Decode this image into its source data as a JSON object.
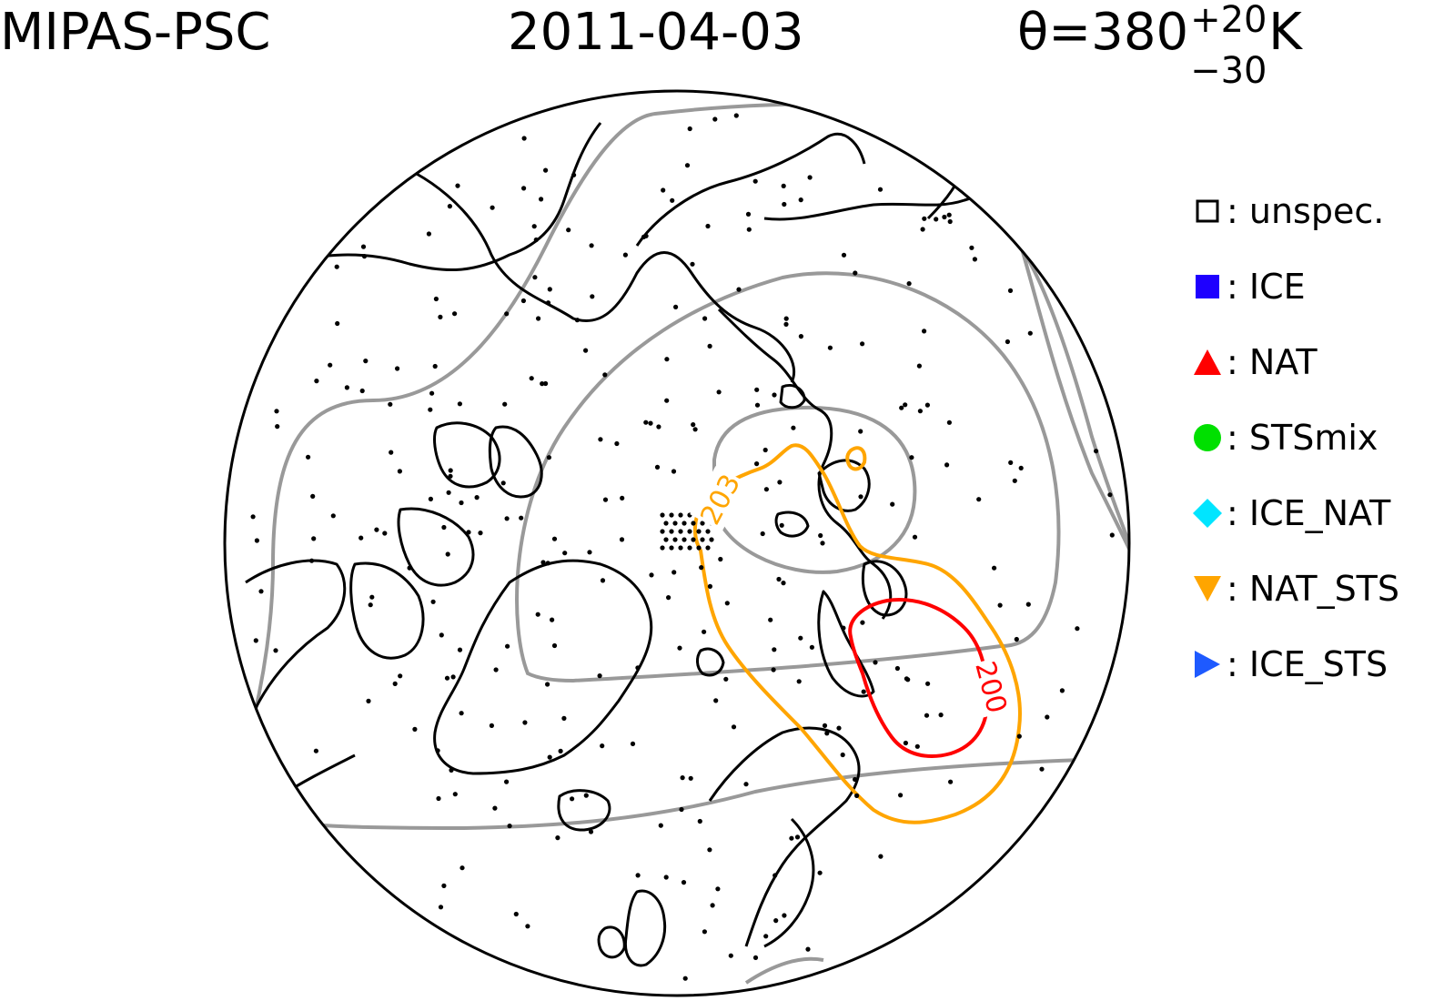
{
  "title": {
    "instrument": "MIPAS-PSC",
    "date": "2011-04-03",
    "theta_prefix": "θ=380",
    "theta_sup": "+20",
    "theta_sub": "−30",
    "theta_unit": "K"
  },
  "map": {
    "projection": "north-polar-stereographic",
    "contours": [
      {
        "label": "203",
        "color": "#FFA500"
      },
      {
        "label": "200",
        "color": "#FF0000"
      }
    ],
    "colors": {
      "coast": "#000000",
      "grid": "#999999",
      "nat_sts": "#FFA500",
      "nat": "#FF0000"
    }
  },
  "legend": {
    "items": [
      {
        "label": ": unspec.",
        "marker": "open-square-icon",
        "color": "#000000"
      },
      {
        "label": ": ICE",
        "marker": "filled-square-icon",
        "color": "#1E00FF"
      },
      {
        "label": ": NAT",
        "marker": "triangle-up-icon",
        "color": "#FF0000"
      },
      {
        "label": ": STSmix",
        "marker": "circle-icon",
        "color": "#00E000"
      },
      {
        "label": ": ICE_NAT",
        "marker": "diamond-icon",
        "color": "#00E5FF"
      },
      {
        "label": ": NAT_STS",
        "marker": "triangle-down-icon",
        "color": "#FFA500"
      },
      {
        "label": ": ICE_STS",
        "marker": "triangle-right-icon",
        "color": "#1E5AFF"
      }
    ]
  }
}
